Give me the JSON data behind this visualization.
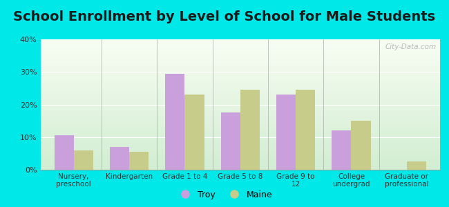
{
  "title": "School Enrollment by Level of School for Male Students",
  "categories": [
    "Nursery,\npreschool",
    "Kindergarten",
    "Grade 1 to 4",
    "Grade 5 to 8",
    "Grade 9 to\n12",
    "College\nundergrad",
    "Graduate or\nprofessional"
  ],
  "troy_values": [
    10.5,
    7.0,
    29.5,
    17.5,
    23.0,
    12.0,
    0.0
  ],
  "maine_values": [
    6.0,
    5.5,
    23.0,
    24.5,
    24.5,
    15.0,
    2.5
  ],
  "troy_color": "#c9a0dc",
  "maine_color": "#c8cc8a",
  "bg_outer": "#00e8e8",
  "ylim": [
    0,
    40
  ],
  "yticks": [
    0,
    10,
    20,
    30,
    40
  ],
  "bar_width": 0.35,
  "title_fontsize": 14,
  "watermark": "City-Data.com"
}
